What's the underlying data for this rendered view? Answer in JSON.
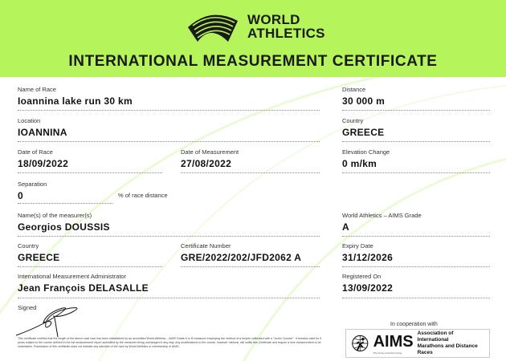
{
  "header": {
    "logo_text_1": "WORLD",
    "logo_text_2": "ATHLETICS",
    "title": "INTERNATIONAL MEASUREMENT CERTIFICATE"
  },
  "fields": {
    "race_name": {
      "label": "Name of Race",
      "value": "Ioannina lake run 30 km"
    },
    "distance": {
      "label": "Distance",
      "value": "30 000 m"
    },
    "location": {
      "label": "Location",
      "value": "IOANNINA"
    },
    "country": {
      "label": "Country",
      "value": "GREECE"
    },
    "date_of_race": {
      "label": "Date of Race",
      "value": "18/09/2022"
    },
    "date_of_measurement": {
      "label": "Date of Measurement",
      "value": "27/08/2022"
    },
    "elevation": {
      "label": "Elevation Change",
      "value": "0 m/km"
    },
    "separation": {
      "label": "Separation",
      "value": "0",
      "unit": "% of race distance"
    },
    "measurer": {
      "label": "Name(s) of the measurer(s)",
      "value": "Georgios DOUSSIS"
    },
    "grade": {
      "label": "World Athletics – AIMS Grade",
      "value": "A"
    },
    "measurer_country": {
      "label": "Country",
      "value": "GREECE"
    },
    "certificate_number": {
      "label": "Certificate Number",
      "value": "GRE/2022/202/JFD2062 A"
    },
    "expiry": {
      "label": "Expiry Date",
      "value": "31/12/2026"
    },
    "administrator": {
      "label": "International Measurement Administrator",
      "value": "Jean François DELASALLE"
    },
    "registered": {
      "label": "Registered On",
      "value": "13/09/2022"
    }
  },
  "signed_label": "Signed",
  "fine_print": "This certificate certifies that the length of the above road race has been established by an accredited World Athletics – AIMS Grade A or B measurer employing the method of a bicycle calibrated with a \"Jones Counter\". It remains valid for 5 years subject to the course defined in the full measurement report submitted by the measurer being unchanged in any way. Any modifications to the course, however minimal, will nullify this Certificate and require a new measurement to be undertaken. Possession of this certificate does not indicate any sanction of the race by World Athletics or membership of AIMS.",
  "cooperation": {
    "label": "In cooperation with",
    "aims": "AIMS",
    "aims_full_1": "Association of International",
    "aims_full_2": "Marathons and Distance Races",
    "aims_tagline": "The home of world running"
  },
  "colors": {
    "header_bg": "#b5f45a",
    "accent": "#b5f45a"
  }
}
